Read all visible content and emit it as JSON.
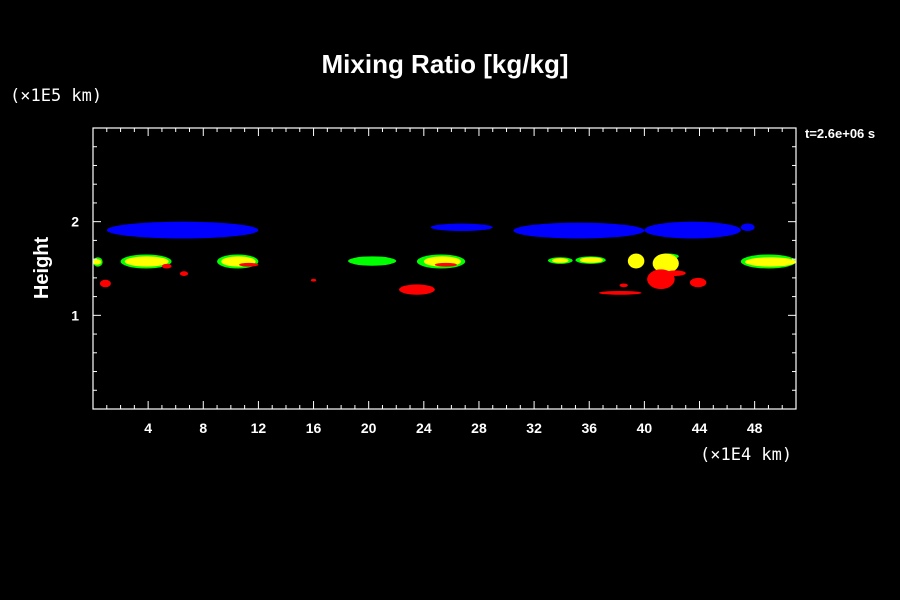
{
  "chart_data": {
    "type": "heatmap",
    "title": "Mixing Ratio [kg/kg]",
    "ylabel": "Height",
    "xlabel": "",
    "x_unit": "(×1E4 km)",
    "y_unit": "(×1E5 km)",
    "time_label": "t=2.6e+06 s",
    "xlim": [
      0,
      51
    ],
    "ylim": [
      0,
      3
    ],
    "x_ticks": [
      4,
      8,
      12,
      16,
      20,
      24,
      28,
      32,
      36,
      40,
      44,
      48
    ],
    "y_ticks": [
      1,
      2
    ],
    "grid": false,
    "background": "#000000",
    "colors": {
      "blue": "#0000ff",
      "green": "#00ff00",
      "yellow": "#ffff00",
      "red": "#ff0000"
    },
    "regions": [
      {
        "color": "blue",
        "x": [
          1,
          12
        ],
        "y": [
          1.82,
          2.0
        ]
      },
      {
        "color": "blue",
        "x": [
          24.5,
          29
        ],
        "y": [
          1.9,
          1.98
        ]
      },
      {
        "color": "blue",
        "x": [
          30.5,
          40
        ],
        "y": [
          1.82,
          1.99
        ]
      },
      {
        "color": "blue",
        "x": [
          40,
          47
        ],
        "y": [
          1.82,
          2.0
        ]
      },
      {
        "color": "blue",
        "x": [
          47,
          48
        ],
        "y": [
          1.9,
          1.98
        ]
      },
      {
        "color": "green",
        "x": [
          0,
          0.7
        ],
        "y": [
          1.52,
          1.62
        ]
      },
      {
        "color": "green",
        "x": [
          2,
          5.7
        ],
        "y": [
          1.5,
          1.65
        ]
      },
      {
        "color": "green",
        "x": [
          9,
          12
        ],
        "y": [
          1.5,
          1.65
        ]
      },
      {
        "color": "green",
        "x": [
          18.5,
          22
        ],
        "y": [
          1.53,
          1.63
        ]
      },
      {
        "color": "green",
        "x": [
          23.5,
          27
        ],
        "y": [
          1.5,
          1.65
        ]
      },
      {
        "color": "green",
        "x": [
          33,
          34.8
        ],
        "y": [
          1.55,
          1.62
        ]
      },
      {
        "color": "green",
        "x": [
          35,
          37.2
        ],
        "y": [
          1.55,
          1.63
        ]
      },
      {
        "color": "green",
        "x": [
          41,
          42.5
        ],
        "y": [
          1.6,
          1.66
        ]
      },
      {
        "color": "green",
        "x": [
          47,
          51
        ],
        "y": [
          1.5,
          1.65
        ]
      },
      {
        "color": "yellow",
        "x": [
          0,
          0.6
        ],
        "y": [
          1.54,
          1.6
        ]
      },
      {
        "color": "yellow",
        "x": [
          2.3,
          5.5
        ],
        "y": [
          1.52,
          1.63
        ]
      },
      {
        "color": "yellow",
        "x": [
          9.3,
          11.8
        ],
        "y": [
          1.52,
          1.63
        ]
      },
      {
        "color": "yellow",
        "x": [
          24,
          26.7
        ],
        "y": [
          1.52,
          1.63
        ]
      },
      {
        "color": "yellow",
        "x": [
          33.3,
          34.5
        ],
        "y": [
          1.56,
          1.61
        ]
      },
      {
        "color": "yellow",
        "x": [
          35.3,
          37
        ],
        "y": [
          1.56,
          1.62
        ]
      },
      {
        "color": "yellow",
        "x": [
          38.8,
          40
        ],
        "y": [
          1.5,
          1.66
        ]
      },
      {
        "color": "yellow",
        "x": [
          40.6,
          42.5
        ],
        "y": [
          1.45,
          1.66
        ]
      },
      {
        "color": "yellow",
        "x": [
          47.3,
          51
        ],
        "y": [
          1.52,
          1.62
        ]
      },
      {
        "color": "red",
        "x": [
          0.5,
          1.3
        ],
        "y": [
          1.3,
          1.38
        ]
      },
      {
        "color": "red",
        "x": [
          5,
          5.7
        ],
        "y": [
          1.5,
          1.55
        ]
      },
      {
        "color": "red",
        "x": [
          6.3,
          6.9
        ],
        "y": [
          1.42,
          1.47
        ]
      },
      {
        "color": "red",
        "x": [
          10.6,
          12
        ],
        "y": [
          1.52,
          1.56
        ]
      },
      {
        "color": "red",
        "x": [
          15.8,
          16.2
        ],
        "y": [
          1.36,
          1.39
        ]
      },
      {
        "color": "red",
        "x": [
          22.2,
          24.8
        ],
        "y": [
          1.22,
          1.33
        ]
      },
      {
        "color": "red",
        "x": [
          24.8,
          26.4
        ],
        "y": [
          1.52,
          1.56
        ]
      },
      {
        "color": "red",
        "x": [
          36.7,
          39.8
        ],
        "y": [
          1.22,
          1.26
        ]
      },
      {
        "color": "red",
        "x": [
          38.2,
          38.8
        ],
        "y": [
          1.3,
          1.34
        ]
      },
      {
        "color": "red",
        "x": [
          40.2,
          42.2
        ],
        "y": [
          1.28,
          1.49
        ]
      },
      {
        "color": "red",
        "x": [
          41.5,
          43
        ],
        "y": [
          1.42,
          1.48
        ]
      },
      {
        "color": "red",
        "x": [
          43.3,
          44.5
        ],
        "y": [
          1.3,
          1.4
        ]
      }
    ]
  }
}
